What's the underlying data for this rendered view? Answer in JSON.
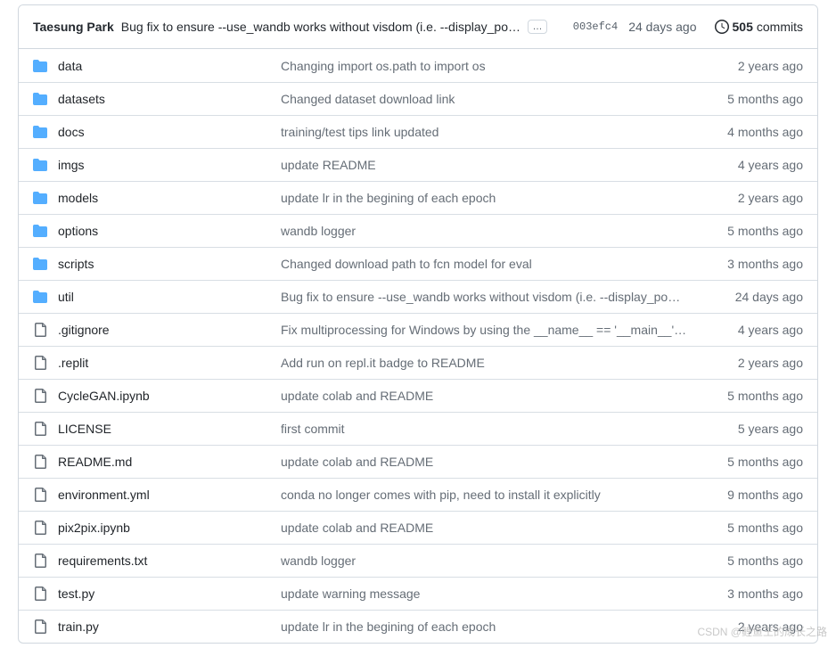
{
  "header": {
    "author": "Taesung Park",
    "commit_message": "Bug fix to ensure --use_wandb works without visdom (i.e. --display_po…",
    "more_label": "…",
    "commit_hash": "003efc4",
    "commit_age": "24 days ago",
    "commits_count": "505",
    "commits_label": "commits"
  },
  "colors": {
    "folder_icon": "#54aeff",
    "file_icon": "#656d76",
    "border": "#d0d7de",
    "text_primary": "#24292f",
    "text_muted": "#656d76",
    "link": "#0969da"
  },
  "files": [
    {
      "type": "dir",
      "name": "data",
      "msg": "Changing import os.path to import os",
      "age": "2 years ago"
    },
    {
      "type": "dir",
      "name": "datasets",
      "msg": "Changed dataset download link",
      "age": "5 months ago"
    },
    {
      "type": "dir",
      "name": "docs",
      "msg": "training/test tips link updated",
      "age": "4 months ago"
    },
    {
      "type": "dir",
      "name": "imgs",
      "msg": "update README",
      "age": "4 years ago"
    },
    {
      "type": "dir",
      "name": "models",
      "msg": "update lr in the begining of each epoch",
      "age": "2 years ago"
    },
    {
      "type": "dir",
      "name": "options",
      "msg": "wandb logger",
      "age": "5 months ago"
    },
    {
      "type": "dir",
      "name": "scripts",
      "msg": "Changed download path to fcn model for eval",
      "age": "3 months ago"
    },
    {
      "type": "dir",
      "name": "util",
      "msg": "Bug fix to ensure --use_wandb works without visdom (i.e. --display_po…",
      "age": "24 days ago"
    },
    {
      "type": "file",
      "name": ".gitignore",
      "msg": "Fix multiprocessing for Windows by using the __name__ == '__main__' i…",
      "age": "4 years ago"
    },
    {
      "type": "file",
      "name": ".replit",
      "msg": "Add run on repl.it badge to README",
      "age": "2 years ago"
    },
    {
      "type": "file",
      "name": "CycleGAN.ipynb",
      "msg": "update colab and README",
      "age": "5 months ago"
    },
    {
      "type": "file",
      "name": "LICENSE",
      "msg": "first commit",
      "age": "5 years ago"
    },
    {
      "type": "file",
      "name": "README.md",
      "msg": "update colab and README",
      "age": "5 months ago"
    },
    {
      "type": "file",
      "name": "environment.yml",
      "msg": "conda no longer comes with pip, need to install it explicitly",
      "age": "9 months ago"
    },
    {
      "type": "file",
      "name": "pix2pix.ipynb",
      "msg": "update colab and README",
      "age": "5 months ago"
    },
    {
      "type": "file",
      "name": "requirements.txt",
      "msg": "wandb logger",
      "age": "5 months ago"
    },
    {
      "type": "file",
      "name": "test.py",
      "msg": "update warning message",
      "age": "3 months ago"
    },
    {
      "type": "file",
      "name": "train.py",
      "msg": "update lr in the begining of each epoch",
      "age": "2 years ago"
    }
  ],
  "watermark": "CSDN @鲤鱼王的成长之路"
}
